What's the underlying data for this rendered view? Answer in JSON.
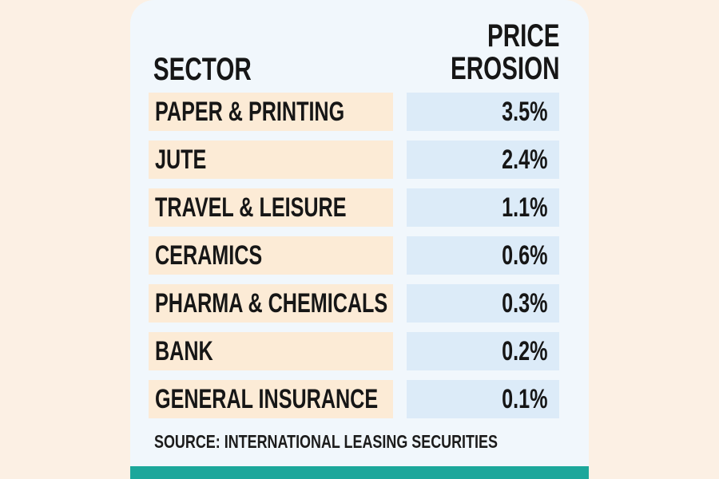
{
  "page": {
    "background_color": "#FCF0E4"
  },
  "card": {
    "background_color": "#F1F7FC",
    "accent_bar_color": "#1CA79B"
  },
  "header": {
    "sector": "SECTOR",
    "price_erosion": "PRICE\nEROSION"
  },
  "table": {
    "cell_colors": {
      "sector_bg": "#FCEBD6",
      "value_bg": "#DCEBF8",
      "text": "#161616"
    },
    "rows": [
      {
        "sector": "PAPER & PRINTING",
        "value": "3.5%"
      },
      {
        "sector": "JUTE",
        "value": "2.4%"
      },
      {
        "sector": "TRAVEL & LEISURE",
        "value": "1.1%"
      },
      {
        "sector": "CERAMICS",
        "value": "0.6%"
      },
      {
        "sector": "PHARMA & CHEMICALS",
        "value": "0.3%"
      },
      {
        "sector": "BANK",
        "value": "0.2%"
      },
      {
        "sector": "GENERAL INSURANCE",
        "value": "0.1%"
      }
    ]
  },
  "source": {
    "text": "SOURCE: INTERNATIONAL LEASING SECURITIES"
  },
  "chart_data": {
    "type": "table",
    "title": "",
    "columns": [
      "SECTOR",
      "PRICE EROSION"
    ],
    "categories": [
      "PAPER & PRINTING",
      "JUTE",
      "TRAVEL & LEISURE",
      "CERAMICS",
      "PHARMA & CHEMICALS",
      "BANK",
      "GENERAL INSURANCE"
    ],
    "values": [
      3.5,
      2.4,
      1.1,
      0.6,
      0.3,
      0.2,
      0.1
    ],
    "value_unit": "%",
    "annotations": [
      "SOURCE: INTERNATIONAL LEASING SECURITIES"
    ]
  }
}
